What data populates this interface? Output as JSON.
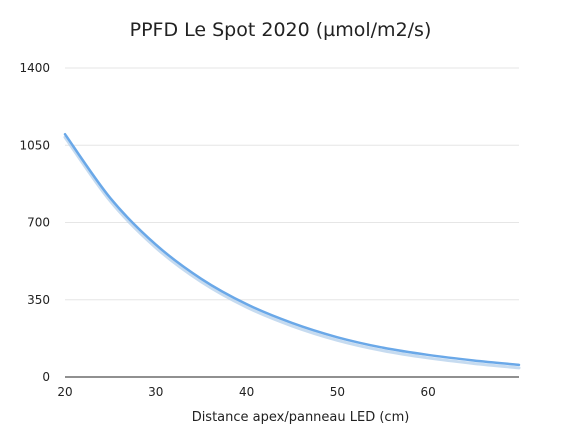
{
  "chart_data": {
    "type": "line",
    "title": "PPFD Le Spot 2020 (µmol/m2/s)",
    "xlabel": "Distance apex/panneau LED (cm)",
    "ylabel": "",
    "xlim": [
      20,
      70
    ],
    "ylim": [
      0,
      1400
    ],
    "x_ticks": [
      20,
      30,
      40,
      50,
      60
    ],
    "x_tick_labels": [
      "20",
      "30",
      "40",
      "50",
      "60"
    ],
    "y_ticks": [
      0,
      350,
      700,
      1050,
      1400
    ],
    "y_tick_labels": [
      "0",
      "350",
      "700",
      "1050",
      "1400"
    ],
    "grid": true,
    "legend": "none",
    "series": [
      {
        "color": "#6aa8e8",
        "x": [
          20,
          25,
          30,
          35,
          40,
          45,
          50,
          55,
          60,
          65,
          70
        ],
        "values": [
          1100,
          810,
          600,
          445,
          330,
          245,
          180,
          133,
          100,
          75,
          55
        ]
      }
    ],
    "colors": {
      "line": "#6aa8e8",
      "line_shadow": "#b8d2ec",
      "grid": "#e6e6e6",
      "axis": "#222222"
    }
  }
}
